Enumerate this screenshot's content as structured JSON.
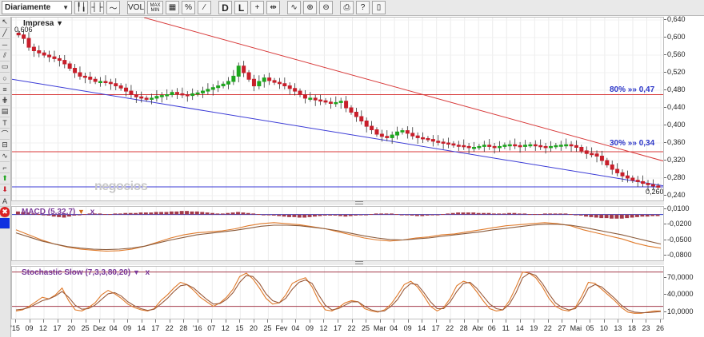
{
  "toolbar": {
    "period": "Diariamente",
    "buttons": [
      {
        "name": "candle-chart-icon",
        "glyph": "╿╽"
      },
      {
        "name": "ohlc-chart-icon",
        "glyph": "┤├"
      },
      {
        "name": "line-chart-icon",
        "glyph": "〜"
      },
      {
        "name": "vol-toggle",
        "glyph": "VOL"
      },
      {
        "name": "max-min-toggle",
        "glyph": "MAX\nMIN"
      },
      {
        "name": "grid-icon",
        "glyph": "▦"
      },
      {
        "name": "percent-icon",
        "glyph": "%"
      },
      {
        "name": "log-scale-icon",
        "glyph": "⁄"
      },
      {
        "name": "daily-button",
        "glyph": "D"
      },
      {
        "name": "log-button",
        "glyph": "L"
      },
      {
        "name": "crosshair-icon",
        "glyph": "+"
      },
      {
        "name": "pan-icon",
        "glyph": "⇹"
      },
      {
        "name": "indicator-icon",
        "glyph": "∿"
      },
      {
        "name": "zoom-in-icon",
        "glyph": "⊕"
      },
      {
        "name": "zoom-out-icon",
        "glyph": "⊖"
      },
      {
        "name": "print-icon",
        "glyph": "⎙"
      },
      {
        "name": "help-icon",
        "glyph": "?"
      },
      {
        "name": "book-icon",
        "glyph": "▯"
      }
    ]
  },
  "main": {
    "title": "Impresa",
    "title_marker": "▼",
    "first_value": "0,606",
    "last_value": "0,260",
    "watermark": "negocios",
    "fib80": "80% »» 0,47",
    "fib30": "30% »» 0,34"
  },
  "macd": {
    "title": "MACD (5,32,7)",
    "marker": "▼",
    "close": "x"
  },
  "stoch": {
    "title": "Stochastic Slow (7,3,3,80,20)",
    "marker": "▼",
    "close": "x"
  },
  "colors": {
    "up": "#1fa51f",
    "down": "#c81e2a",
    "fib": "#d83a3a",
    "blue": "#3b3bd6",
    "osc": "#e07a2a"
  },
  "axes": {
    "main_y": [
      "0,640",
      "0,600",
      "0,560",
      "0,520",
      "0,480",
      "0,440",
      "0,400",
      "0,360",
      "0,320",
      "0,280",
      "0,240"
    ],
    "macd_y": [
      "0,0100",
      "-0,0200",
      "-0,0500",
      "-0,0800"
    ],
    "stoch_y": [
      "70,0000",
      "40,0000",
      "10,0000"
    ],
    "x": [
      "'15",
      "09",
      "12",
      "17",
      "20",
      "25",
      "Dez",
      "04",
      "09",
      "14",
      "17",
      "22",
      "28",
      "'16",
      "07",
      "12",
      "15",
      "20",
      "25",
      "Fev",
      "04",
      "09",
      "12",
      "17",
      "22",
      "25",
      "Mar",
      "04",
      "09",
      "14",
      "17",
      "22",
      "28",
      "Abr",
      "06",
      "11",
      "14",
      "19",
      "22",
      "27",
      "Mai",
      "05",
      "10",
      "13",
      "18",
      "23",
      "26"
    ]
  },
  "chart_data": [
    {
      "type": "candlestick",
      "title": "Impresa",
      "ylim": [
        0.24,
        0.64
      ],
      "series": [
        {
          "name": "price",
          "values": [
            0.606,
            0.598,
            0.578,
            0.57,
            0.565,
            0.56,
            0.556,
            0.552,
            0.548,
            0.54,
            0.53,
            0.52,
            0.512,
            0.51,
            0.505,
            0.5,
            0.5,
            0.498,
            0.495,
            0.49,
            0.485,
            0.478,
            0.47,
            0.465,
            0.462,
            0.46,
            0.462,
            0.466,
            0.468,
            0.47,
            0.475,
            0.472,
            0.47,
            0.468,
            0.472,
            0.474,
            0.478,
            0.482,
            0.486,
            0.49,
            0.494,
            0.5,
            0.512,
            0.535,
            0.52,
            0.505,
            0.49,
            0.5,
            0.508,
            0.502,
            0.498,
            0.495,
            0.49,
            0.484,
            0.478,
            0.47,
            0.462,
            0.462,
            0.458,
            0.456,
            0.453,
            0.45,
            0.452,
            0.455,
            0.44,
            0.43,
            0.42,
            0.41,
            0.398,
            0.39,
            0.38,
            0.375,
            0.372,
            0.378,
            0.385,
            0.388,
            0.382,
            0.376,
            0.372,
            0.37,
            0.368,
            0.364,
            0.362,
            0.36,
            0.358,
            0.355,
            0.354,
            0.352,
            0.35,
            0.35,
            0.352,
            0.355,
            0.352,
            0.35,
            0.352,
            0.355,
            0.356,
            0.354,
            0.352,
            0.355,
            0.356,
            0.354,
            0.352,
            0.35,
            0.352,
            0.354,
            0.355,
            0.356,
            0.354,
            0.35,
            0.342,
            0.336,
            0.335,
            0.33,
            0.32,
            0.31,
            0.3,
            0.292,
            0.285,
            0.28,
            0.275,
            0.272,
            0.268,
            0.265,
            0.262,
            0.26
          ]
        }
      ],
      "hlines": [
        {
          "label": "80%",
          "value": 0.47
        },
        {
          "label": "30%",
          "value": 0.34
        },
        {
          "value": 0.26
        }
      ]
    },
    {
      "type": "bar",
      "title": "MACD (5,32,7)",
      "ylim": [
        -0.09,
        0.012
      ],
      "series": [
        {
          "name": "histogram",
          "values": [
            0.006,
            0.005,
            0.004,
            0.002,
            0.001,
            -0.001,
            -0.002,
            -0.004,
            -0.005,
            -0.006,
            -0.004,
            -0.002,
            0.0,
            0.001,
            0.002,
            0.002,
            0.002,
            0.001,
            0.001,
            0.002,
            0.002,
            0.003,
            0.003,
            0.003,
            0.004,
            0.004,
            0.004,
            0.005,
            0.005,
            0.005,
            0.006,
            0.006,
            0.007,
            0.007,
            0.006,
            0.006,
            0.005,
            0.004,
            0.003,
            0.002,
            0.002,
            0.003,
            0.004,
            0.005,
            0.004,
            0.003,
            0.002,
            0.001,
            0.0,
            -0.001,
            -0.002,
            -0.003,
            -0.004,
            -0.005,
            -0.005,
            -0.006,
            -0.006,
            -0.005,
            -0.004,
            -0.003,
            -0.002,
            -0.002,
            -0.002,
            -0.003,
            -0.004,
            -0.003,
            -0.002,
            -0.001,
            0.0,
            0.001,
            0.002,
            0.002,
            0.002,
            0.002,
            0.001,
            0.0,
            -0.001,
            -0.002,
            -0.003,
            -0.003,
            -0.002,
            -0.001,
            0.0,
            0.001,
            0.002,
            0.003,
            0.004,
            0.004,
            0.004,
            0.004,
            0.003,
            0.003,
            0.003,
            0.002,
            0.002,
            0.002,
            0.003,
            0.003,
            0.002,
            0.002,
            0.001,
            0.001,
            0.001,
            0.002,
            0.002,
            0.002,
            0.002,
            0.002,
            0.001,
            0.0,
            -0.002,
            -0.004,
            -0.005,
            -0.006,
            -0.007,
            -0.007,
            -0.008,
            -0.008,
            -0.008,
            -0.007,
            -0.006,
            -0.005,
            -0.004,
            -0.004,
            -0.003,
            -0.003
          ]
        },
        {
          "name": "macd",
          "values": [
            -0.03,
            -0.04,
            -0.05,
            -0.058,
            -0.064,
            -0.068,
            -0.07,
            -0.072,
            -0.071,
            -0.068,
            -0.062,
            -0.054,
            -0.046,
            -0.04,
            -0.036,
            -0.034,
            -0.032,
            -0.028,
            -0.022,
            -0.018,
            -0.016,
            -0.018,
            -0.02,
            -0.024,
            -0.028,
            -0.034,
            -0.04,
            -0.046,
            -0.05,
            -0.052,
            -0.05,
            -0.046,
            -0.044,
            -0.04,
            -0.038,
            -0.034,
            -0.03,
            -0.026,
            -0.022,
            -0.02,
            -0.018,
            -0.016,
            -0.018,
            -0.022,
            -0.03,
            -0.036,
            -0.042,
            -0.048,
            -0.056,
            -0.062,
            -0.066
          ]
        },
        {
          "name": "signal",
          "values": [
            -0.036,
            -0.044,
            -0.052,
            -0.058,
            -0.063,
            -0.066,
            -0.068,
            -0.069,
            -0.068,
            -0.066,
            -0.062,
            -0.056,
            -0.05,
            -0.045,
            -0.04,
            -0.037,
            -0.034,
            -0.031,
            -0.027,
            -0.023,
            -0.021,
            -0.021,
            -0.022,
            -0.025,
            -0.028,
            -0.032,
            -0.037,
            -0.042,
            -0.046,
            -0.049,
            -0.05,
            -0.048,
            -0.046,
            -0.043,
            -0.04,
            -0.037,
            -0.034,
            -0.03,
            -0.027,
            -0.024,
            -0.021,
            -0.019,
            -0.019,
            -0.021,
            -0.025,
            -0.03,
            -0.035,
            -0.04,
            -0.046,
            -0.052,
            -0.058
          ]
        }
      ]
    },
    {
      "type": "line",
      "title": "Stochastic Slow (7,3,3,80,20)",
      "ylim": [
        0,
        85
      ],
      "series": [
        {
          "name": "%K",
          "values": [
            12,
            14,
            20,
            28,
            36,
            33,
            40,
            52,
            30,
            14,
            12,
            18,
            26,
            40,
            48,
            42,
            34,
            24,
            18,
            14,
            12,
            16,
            30,
            40,
            52,
            62,
            58,
            48,
            36,
            28,
            20,
            26,
            36,
            50,
            72,
            78,
            68,
            52,
            34,
            24,
            26,
            40,
            60,
            66,
            70,
            54,
            30,
            14,
            12,
            18,
            26,
            30,
            28,
            16,
            12,
            10,
            14,
            24,
            40,
            58,
            64,
            54,
            38,
            20,
            12,
            18,
            34,
            56,
            64,
            60,
            46,
            30,
            16,
            12,
            14,
            30,
            54,
            80,
            78,
            70,
            54,
            34,
            20,
            14,
            12,
            18,
            38,
            62,
            60,
            50,
            40,
            30,
            18,
            10,
            8,
            8,
            10,
            12,
            12
          ]
        },
        {
          "name": "%D",
          "values": [
            14,
            15,
            18,
            24,
            30,
            33,
            38,
            46,
            36,
            22,
            15,
            16,
            22,
            32,
            42,
            44,
            38,
            28,
            21,
            16,
            13,
            15,
            24,
            34,
            46,
            56,
            58,
            52,
            42,
            32,
            24,
            25,
            32,
            44,
            62,
            74,
            72,
            60,
            42,
            30,
            26,
            34,
            50,
            62,
            66,
            60,
            40,
            22,
            14,
            16,
            22,
            28,
            28,
            20,
            14,
            11,
            12,
            20,
            32,
            50,
            60,
            58,
            44,
            28,
            16,
            16,
            28,
            46,
            60,
            62,
            52,
            38,
            24,
            16,
            14,
            24,
            44,
            70,
            78,
            74,
            60,
            42,
            26,
            18,
            14,
            16,
            30,
            52,
            58,
            54,
            44,
            34,
            22,
            14,
            10,
            9,
            9,
            10,
            11
          ]
        }
      ]
    }
  ]
}
